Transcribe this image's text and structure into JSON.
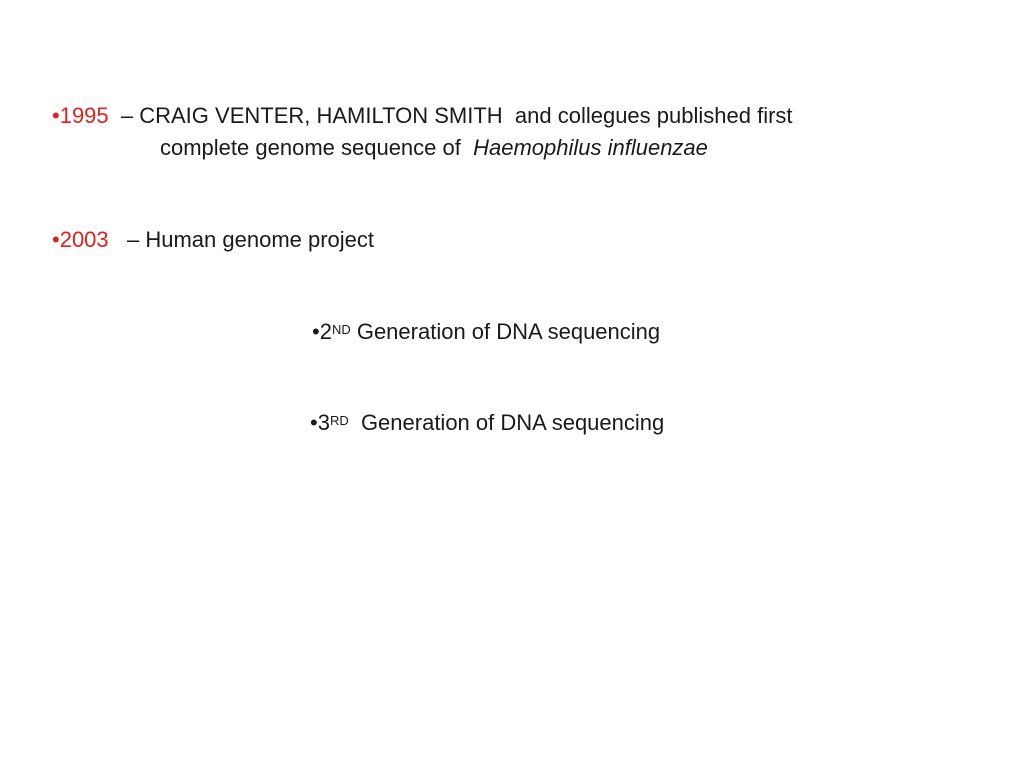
{
  "bullets": {
    "b1995": {
      "year": "•1995",
      "dash_text": "  – CRAIG VENTER, HAMILTON SMITH  and collegues published first",
      "line2_plain": "complete genome sequence of  ",
      "line2_italic": "Haemophilus influenzae"
    },
    "b2003": {
      "year": "•2003",
      "text": "   – Human genome project"
    },
    "gen2": {
      "prefix": "•2",
      "sup": "ND",
      "text": " Generation of DNA sequencing"
    },
    "gen3": {
      "prefix": "•3",
      "sup": "RD",
      "text": "  Generation of DNA sequencing"
    }
  },
  "colors": {
    "year_red": "#e0211b",
    "text": "#1a1a1a",
    "background": "#ffffff"
  }
}
